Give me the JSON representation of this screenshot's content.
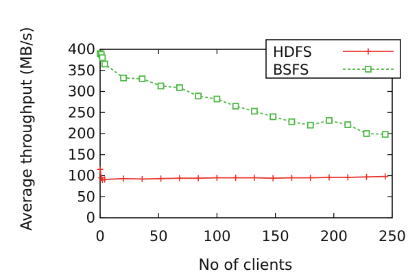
{
  "chart_data": {
    "type": "line",
    "title": "",
    "xlabel": "No of clients",
    "ylabel": "Average throughput (MB/s)",
    "xlim": [
      0,
      250
    ],
    "ylim": [
      0,
      400
    ],
    "xticks": [
      0,
      50,
      100,
      150,
      200,
      250
    ],
    "yticks": [
      0,
      50,
      100,
      150,
      200,
      250,
      300,
      350,
      400
    ],
    "grid": false,
    "legend_position": "top-right",
    "series": [
      {
        "name": "HDFS",
        "color": "#e8332b",
        "marker": "plus",
        "line_style": "solid",
        "x": [
          0,
          1,
          2,
          4,
          20,
          36,
          52,
          68,
          84,
          100,
          116,
          132,
          148,
          164,
          180,
          196,
          212,
          228,
          244
        ],
        "y": [
          115,
          95,
          90,
          91,
          93,
          92,
          93,
          94,
          94,
          95,
          95,
          95,
          94,
          95,
          95,
          96,
          96,
          97,
          98
        ]
      },
      {
        "name": "BSFS",
        "color": "#4cb843",
        "marker": "square",
        "line_style": "dashed",
        "x": [
          0,
          1,
          2,
          4,
          20,
          36,
          52,
          68,
          84,
          100,
          116,
          132,
          148,
          164,
          180,
          196,
          212,
          228,
          244
        ],
        "y": [
          390,
          388,
          380,
          365,
          332,
          330,
          313,
          309,
          289,
          282,
          265,
          253,
          240,
          228,
          220,
          231,
          221,
          200,
          198
        ]
      }
    ]
  }
}
